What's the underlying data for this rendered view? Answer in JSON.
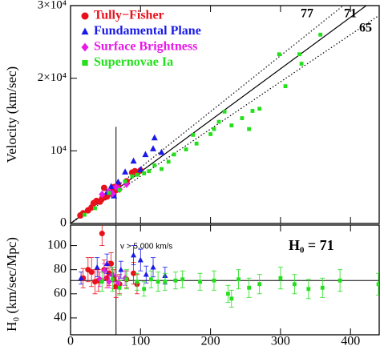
{
  "chart_data": [
    {
      "type": "scatter",
      "y_label": "Velocity (km/sec)",
      "xlim": [
        0,
        441
      ],
      "ylim": [
        0,
        30000
      ],
      "xticks": [
        0,
        100,
        200,
        300,
        400
      ],
      "yticks": [
        0,
        {
          "value": 10000,
          "label": "10⁴"
        },
        {
          "value": 20000,
          "label": "2×10⁴"
        },
        {
          "value": 30000,
          "label": "3×10⁴"
        }
      ],
      "reference_lines": [
        {
          "slope": 77,
          "label": "77",
          "dash": "dotted"
        },
        {
          "slope": 71,
          "label": "71",
          "dash": "solid"
        },
        {
          "slope": 65,
          "label": "65",
          "dash": "dotted"
        }
      ],
      "vline": 65,
      "series": [
        {
          "name": "Tully−Fisher",
          "color": "#e8101a",
          "marker": "circle",
          "x": [
            14,
            18,
            25,
            30,
            33,
            37,
            42,
            45,
            48,
            52,
            55,
            58,
            62,
            65,
            68,
            80,
            88,
            92,
            95,
            100
          ],
          "values": [
            1100,
            1400,
            1800,
            2200,
            2800,
            3100,
            3000,
            3400,
            4900,
            3700,
            4200,
            4500,
            5000,
            4600,
            5400,
            5800,
            7000,
            7200,
            6900,
            7300
          ]
        },
        {
          "name": "Fundamental Plane",
          "color": "#1a1ae8",
          "marker": "triangle",
          "x": [
            52,
            58,
            62,
            68,
            78,
            90,
            100,
            107,
            118,
            120,
            130
          ],
          "values": [
            4300,
            5100,
            3800,
            5700,
            7100,
            8600,
            7400,
            9500,
            10300,
            11800,
            9800
          ]
        },
        {
          "name": "Surface Brightness",
          "color": "#e81ae8",
          "marker": "diamond",
          "x": [
            45,
            55,
            60,
            65,
            70,
            80
          ],
          "values": [
            4000,
            4400,
            4100,
            5000,
            4700,
            5400
          ]
        },
        {
          "name": "Supernovae Ia",
          "color": "#22e01a",
          "marker": "square",
          "x": [
            20,
            35,
            55,
            70,
            78,
            88,
            95,
            105,
            112,
            120,
            130,
            140,
            148,
            165,
            175,
            180,
            200,
            205,
            212,
            220,
            230,
            245,
            255,
            260,
            270,
            298,
            307,
            327,
            330,
            357
          ],
          "values": [
            1200,
            2100,
            4200,
            4600,
            5800,
            6500,
            6700,
            6900,
            7200,
            8000,
            7500,
            8500,
            9500,
            10200,
            12200,
            11000,
            12300,
            13000,
            14000,
            15400,
            13500,
            14500,
            13000,
            15500,
            15800,
            23300,
            18900,
            23300,
            22000,
            26000
          ]
        }
      ]
    },
    {
      "type": "errorbar",
      "y_label": "H₀ (km/sec/Mpc)",
      "annotation": "v > 5,000 km/s",
      "h0_annotation": "H₀ = 71",
      "xlim": [
        0,
        441
      ],
      "ylim": [
        26,
        117
      ],
      "xticks": [
        0,
        100,
        200,
        300,
        400
      ],
      "yticks": [
        40,
        60,
        80,
        100
      ],
      "hline": 71,
      "vline": 65,
      "series": [
        {
          "color": "#e8101a",
          "marker": "circle",
          "x": [
            18,
            25,
            30,
            35,
            40,
            45,
            48,
            52,
            55,
            58,
            62,
            65,
            70,
            80,
            90,
            95
          ],
          "values": [
            73,
            80,
            78,
            70,
            71,
            110,
            80,
            73,
            77,
            85,
            72,
            66,
            68,
            72,
            77,
            68
          ],
          "errors": [
            8,
            10,
            12,
            10,
            9,
            10,
            8,
            8,
            10,
            9,
            8,
            9,
            8,
            7,
            9,
            8
          ]
        },
        {
          "color": "#1a1ae8",
          "marker": "triangle",
          "x": [
            15,
            38,
            52,
            60,
            72,
            90,
            100,
            108,
            118,
            135
          ],
          "values": [
            73,
            82,
            85,
            76,
            80,
            92,
            88,
            76,
            82,
            75
          ],
          "errors": [
            5,
            8,
            8,
            6,
            7,
            8,
            9,
            7,
            8,
            7
          ]
        },
        {
          "color": "#e81ae8",
          "marker": "diamond",
          "x": [
            42,
            48,
            55,
            60,
            68,
            78
          ],
          "values": [
            72,
            79,
            70,
            76,
            69,
            73
          ],
          "errors": [
            6,
            6,
            5,
            6,
            5,
            6
          ]
        },
        {
          "color": "#22e01a",
          "marker": "square",
          "x": [
            45,
            60,
            70,
            80,
            95,
            105,
            115,
            125,
            135,
            150,
            160,
            185,
            205,
            225,
            230,
            240,
            255,
            270,
            300,
            320,
            340,
            360,
            385,
            440
          ],
          "values": [
            70,
            72,
            65,
            72,
            70,
            64,
            72,
            70,
            70,
            71,
            72,
            70,
            71,
            60,
            56,
            72,
            65,
            68,
            73,
            68,
            64,
            65,
            71,
            68
          ],
          "errors": [
            8,
            10,
            6,
            8,
            7,
            6,
            7,
            8,
            7,
            7,
            7,
            7,
            8,
            7,
            7,
            8,
            8,
            8,
            9,
            8,
            8,
            8,
            9,
            9
          ]
        }
      ]
    }
  ]
}
